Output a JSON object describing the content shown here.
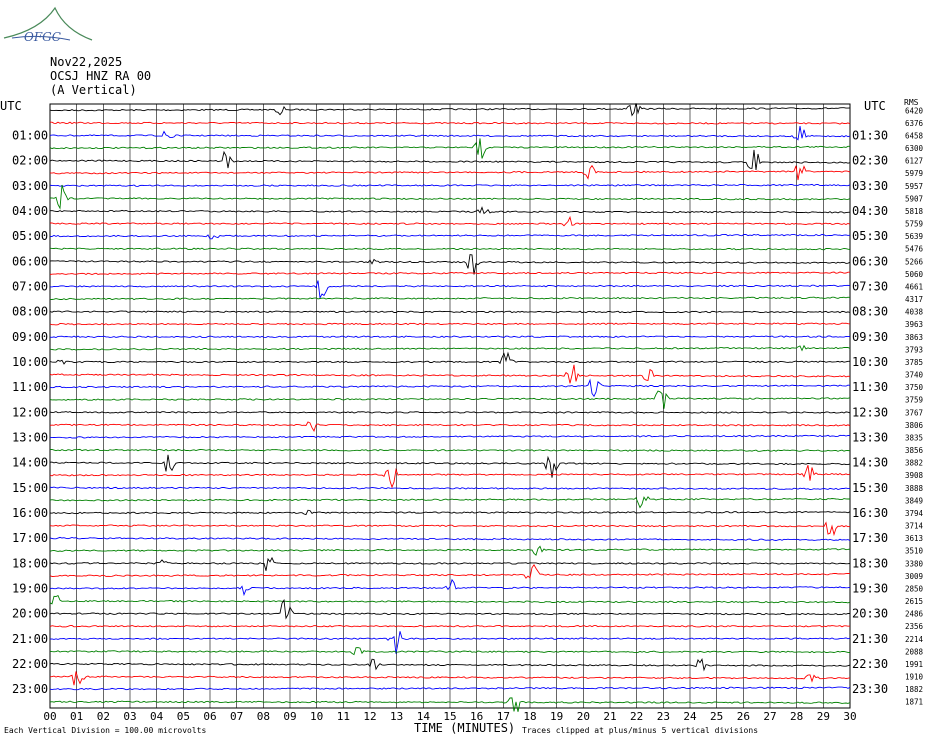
{
  "logo": {
    "text": "OFGC"
  },
  "header": {
    "date": "Nov22,2025",
    "station": "OCSJ HNZ RA 00",
    "component": "(A Vertical)"
  },
  "left_axis_label": "UTC",
  "right_axis_label": "UTC",
  "rms_header": "RMS",
  "footer": {
    "division_note": "Each Vertical Division =  100.00 microvolts",
    "xlabel": "TIME (MINUTES)",
    "clip_note": "Traces clipped at plus/minus 5 vertical divisions"
  },
  "colors": {
    "black": "#000000",
    "red": "#ff0000",
    "blue": "#0000ff",
    "green": "#008000",
    "grid": "#000000"
  },
  "chart_data": {
    "type": "line",
    "title": "",
    "xlabel": "TIME (MINUTES)",
    "x_range": [
      0,
      30
    ],
    "x_ticks": [
      "00",
      "01",
      "02",
      "03",
      "04",
      "05",
      "06",
      "07",
      "08",
      "09",
      "10",
      "11",
      "12",
      "13",
      "14",
      "15",
      "16",
      "17",
      "18",
      "19",
      "20",
      "21",
      "22",
      "23",
      "24",
      "25",
      "26",
      "27",
      "28",
      "29",
      "30"
    ],
    "left_hour_labels": [
      "01:00",
      "02:00",
      "03:00",
      "04:00",
      "05:00",
      "06:00",
      "07:00",
      "08:00",
      "09:00",
      "10:00",
      "11:00",
      "12:00",
      "13:00",
      "14:00",
      "15:00",
      "16:00",
      "17:00",
      "18:00",
      "19:00",
      "20:00",
      "21:00",
      "22:00",
      "23:00"
    ],
    "right_hour_labels": [
      "01:30",
      "02:30",
      "03:30",
      "04:30",
      "05:30",
      "06:30",
      "07:30",
      "08:30",
      "09:30",
      "10:30",
      "11:30",
      "12:30",
      "13:30",
      "14:30",
      "15:30",
      "16:30",
      "17:30",
      "18:30",
      "19:30",
      "20:30",
      "21:30",
      "22:30",
      "23:30"
    ],
    "trace_colors": [
      "black",
      "red",
      "blue",
      "green"
    ],
    "rms_values": [
      "6420",
      "6376",
      "6458",
      "6300",
      "6127",
      "5979",
      "5957",
      "5907",
      "5818",
      "5759",
      "5639",
      "5476",
      "5266",
      "5060",
      "4661",
      "4317",
      "4038",
      "3963",
      "3863",
      "3793",
      "3785",
      "3740",
      "3750",
      "3759",
      "3767",
      "3806",
      "3835",
      "3856",
      "3882",
      "3908",
      "3888",
      "3849",
      "3794",
      "3714",
      "3613",
      "3510",
      "3380",
      "3009",
      "2850",
      "2615",
      "2486",
      "2356",
      "2214",
      "2088",
      "1991",
      "1910",
      "1882",
      "1871"
    ]
  }
}
